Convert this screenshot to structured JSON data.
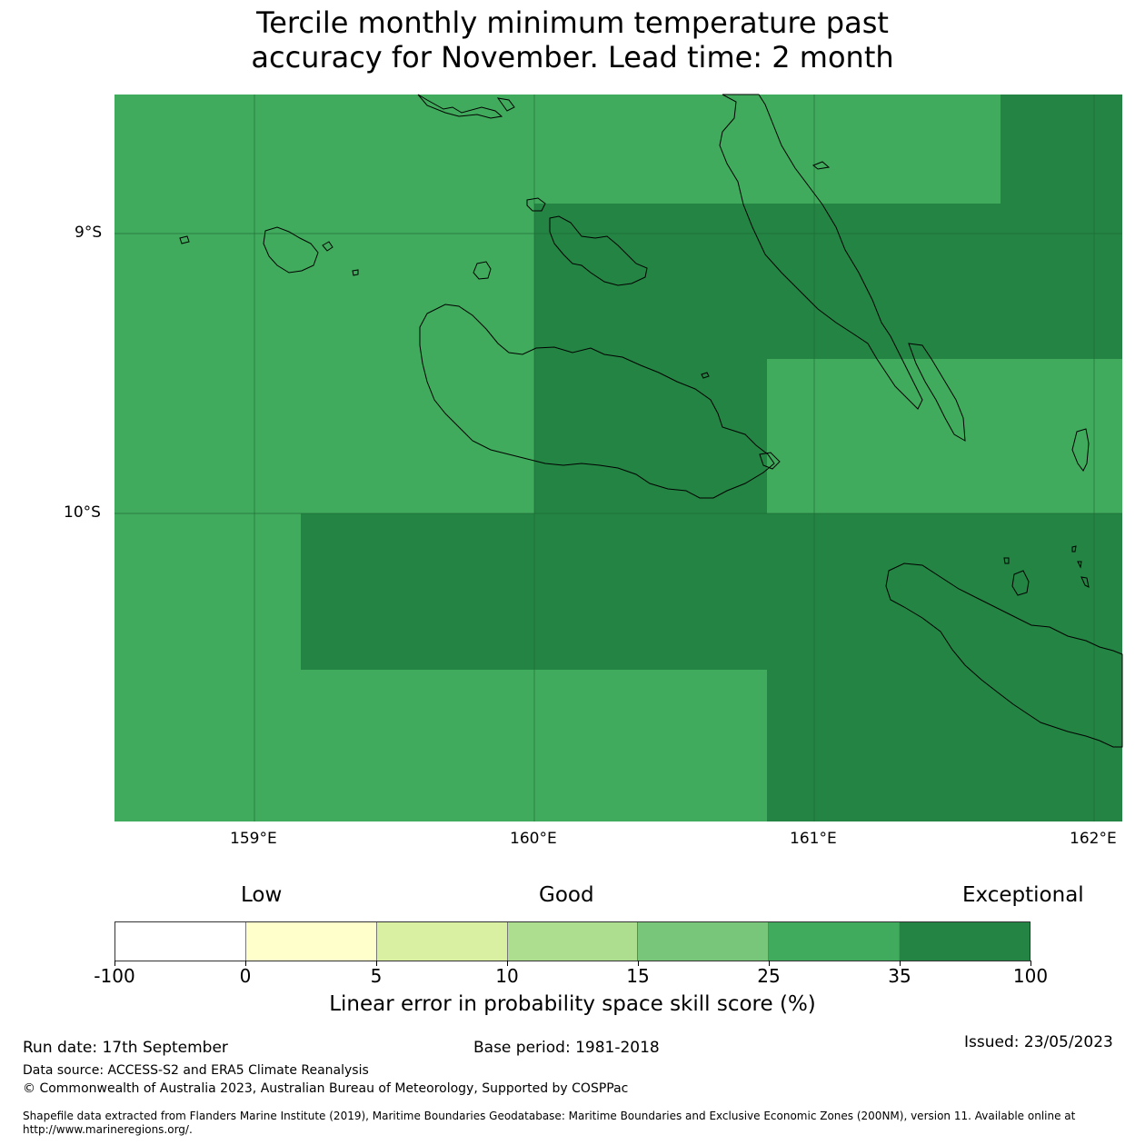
{
  "title": {
    "line1": "Tercile monthly minimum temperature past",
    "line2": "accuracy for November. Lead time: 2 month"
  },
  "map": {
    "longitude_ticks": [
      "159°E",
      "160°E",
      "161°E",
      "162°E"
    ],
    "latitude_ticks": [
      "9°S",
      "10°S"
    ],
    "colors": {
      "good": "#41ab5d",
      "exceptional": "#238443",
      "coastline": "#000000"
    }
  },
  "legend": {
    "categories": [
      "Low",
      "Good",
      "Exceptional"
    ],
    "colors": [
      "#ffffff",
      "#ffffcc",
      "#d9f0a3",
      "#addd8e",
      "#78c679",
      "#41ab5d",
      "#238443"
    ],
    "ticks": [
      "-100",
      "0",
      "5",
      "10",
      "15",
      "25",
      "35",
      "100"
    ],
    "title": "Linear error in probability space skill score (%)"
  },
  "footer": {
    "run_date": "Run date: 17th September",
    "base_period": "Base period: 1981-2018",
    "issued": "Issued: 23/05/2023",
    "data_source": "Data source: ACCESS-S2 and ERA5 Climate Reanalysis",
    "copyright": "© Commonwealth of Australia 2023, Australian Bureau of Meteorology, Supported by COSPPac",
    "shapefile_line1": "Shapefile data extracted from Flanders Marine Institute (2019), Maritime Boundaries Geodatabase: Maritime Boundaries and Exclusive Economic Zones (200NM), version 11. Available online at",
    "shapefile_line2": "http://www.marineregions.org/."
  }
}
